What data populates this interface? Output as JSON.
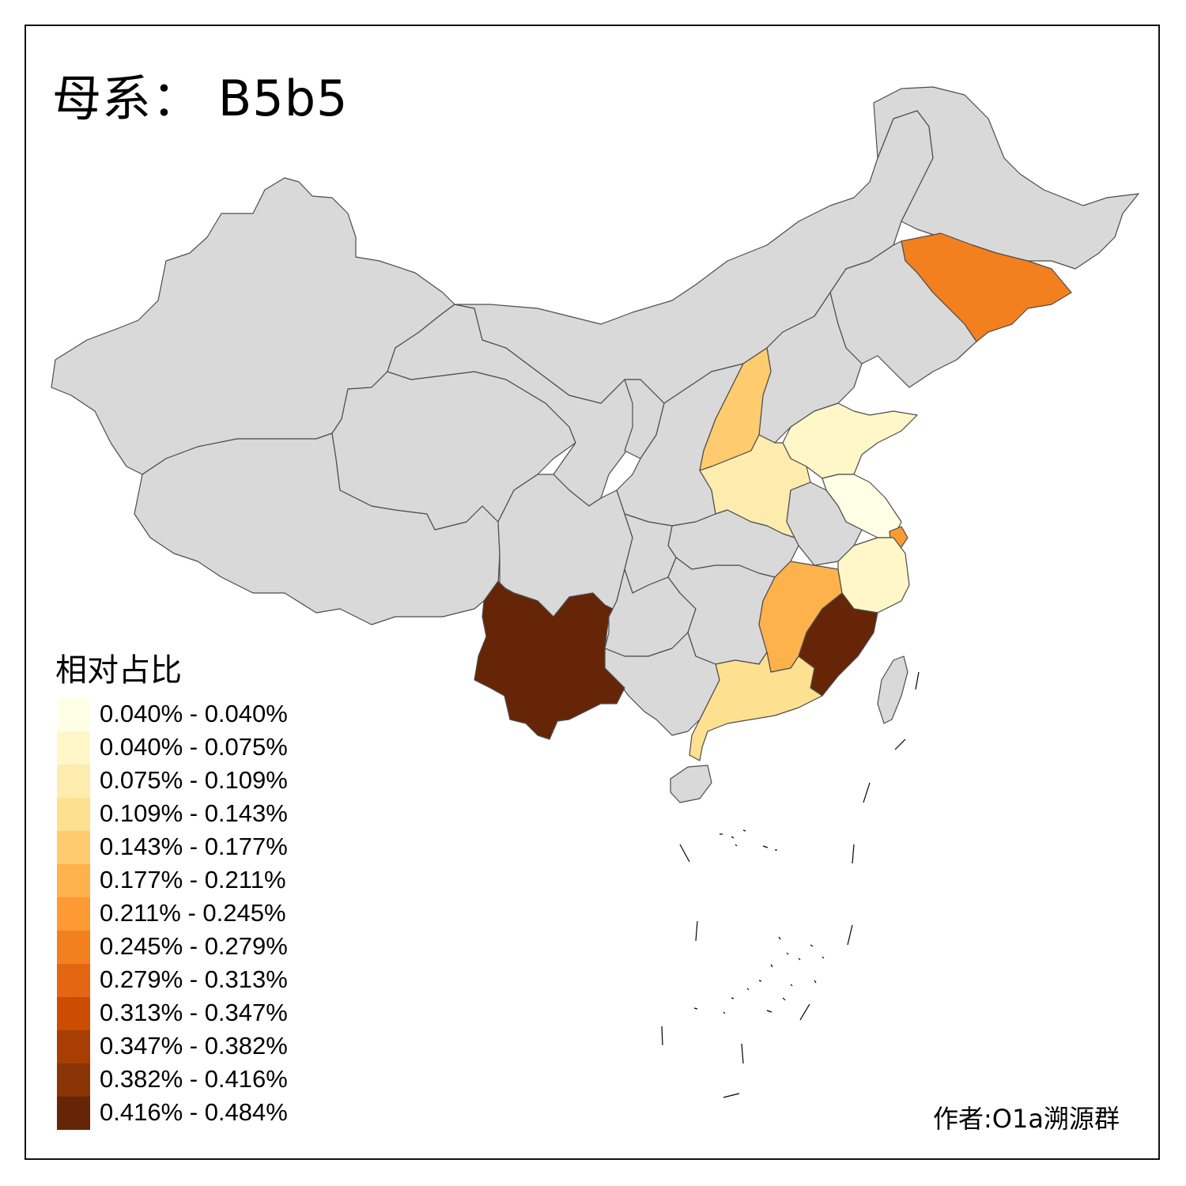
{
  "title": "母系： B5b5",
  "legend": {
    "title": "相对占比",
    "items": [
      {
        "label": "0.040% - 0.040%",
        "color": "#FFFFE5"
      },
      {
        "label": "0.040% - 0.075%",
        "color": "#FFF7C8"
      },
      {
        "label": "0.075% - 0.109%",
        "color": "#FEECAE"
      },
      {
        "label": "0.109% - 0.143%",
        "color": "#FEE091"
      },
      {
        "label": "0.143% - 0.177%",
        "color": "#FECC6E"
      },
      {
        "label": "0.177% - 0.211%",
        "color": "#FEB24C"
      },
      {
        "label": "0.211% - 0.245%",
        "color": "#FD9A33"
      },
      {
        "label": "0.245% - 0.279%",
        "color": "#F3801F"
      },
      {
        "label": "0.279% - 0.313%",
        "color": "#E46613"
      },
      {
        "label": "0.313% - 0.347%",
        "color": "#CC4C02"
      },
      {
        "label": "0.347% - 0.382%",
        "color": "#A83E04"
      },
      {
        "label": "0.382% - 0.416%",
        "color": "#8A3305"
      },
      {
        "label": "0.416% - 0.484%",
        "color": "#662506"
      }
    ]
  },
  "credit": "作者:O1a溯源群",
  "colors": {
    "no_data": "#D9D9D9",
    "border": "#4D4D4D"
  },
  "regions": [
    {
      "id": "xinjiang",
      "color": "#D9D9D9"
    },
    {
      "id": "tibet",
      "color": "#D9D9D9"
    },
    {
      "id": "qinghai",
      "color": "#D9D9D9"
    },
    {
      "id": "gansu",
      "color": "#D9D9D9"
    },
    {
      "id": "inner-mongolia",
      "color": "#D9D9D9"
    },
    {
      "id": "heilongjiang",
      "color": "#D9D9D9"
    },
    {
      "id": "jilin",
      "color": "#F3801F"
    },
    {
      "id": "liaoning",
      "color": "#D9D9D9"
    },
    {
      "id": "hebei",
      "color": "#D9D9D9"
    },
    {
      "id": "ningxia",
      "color": "#D9D9D9"
    },
    {
      "id": "shaanxi",
      "color": "#D9D9D9"
    },
    {
      "id": "shanxi",
      "color": "#FECC6E"
    },
    {
      "id": "shandong",
      "color": "#FFF7C8"
    },
    {
      "id": "henan",
      "color": "#FEECAE"
    },
    {
      "id": "jiangsu",
      "color": "#FFFFE5"
    },
    {
      "id": "shanghai",
      "color": "#FD9A33"
    },
    {
      "id": "anhui",
      "color": "#D9D9D9"
    },
    {
      "id": "hubei",
      "color": "#D9D9D9"
    },
    {
      "id": "sichuan",
      "color": "#D9D9D9"
    },
    {
      "id": "chongqing",
      "color": "#D9D9D9"
    },
    {
      "id": "guizhou",
      "color": "#D9D9D9"
    },
    {
      "id": "hunan",
      "color": "#D9D9D9"
    },
    {
      "id": "jiangxi",
      "color": "#FEB24C"
    },
    {
      "id": "zhejiang",
      "color": "#FFF7C8"
    },
    {
      "id": "fujian",
      "color": "#662506"
    },
    {
      "id": "guangdong",
      "color": "#FEE091"
    },
    {
      "id": "guangxi",
      "color": "#D9D9D9"
    },
    {
      "id": "yunnan",
      "color": "#662506"
    },
    {
      "id": "hainan",
      "color": "#D9D9D9"
    },
    {
      "id": "taiwan",
      "color": "#D9D9D9"
    }
  ]
}
